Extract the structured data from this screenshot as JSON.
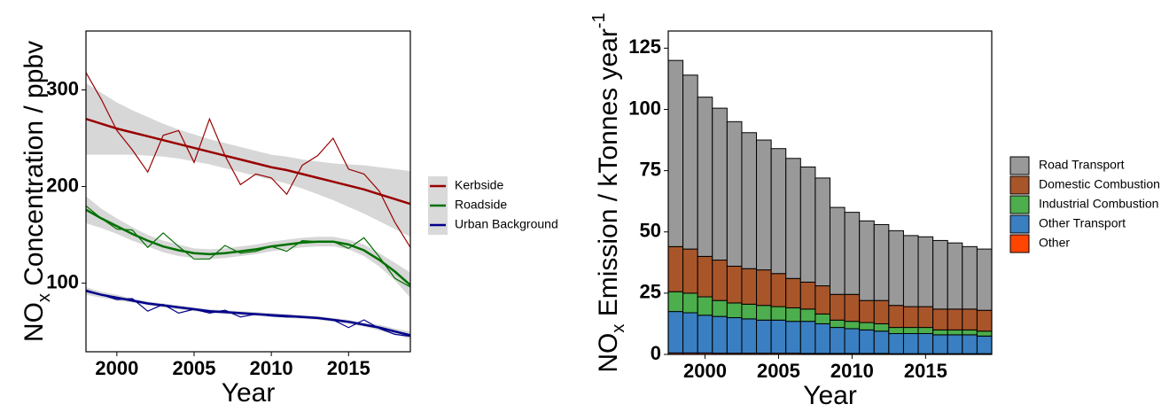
{
  "chart_data": [
    {
      "type": "line",
      "xlabel": "Year",
      "ylabel": [
        "NO",
        "x",
        " Concentration / ppbv"
      ],
      "x": [
        1998,
        1999,
        2000,
        2001,
        2002,
        2003,
        2004,
        2005,
        2006,
        2007,
        2008,
        2009,
        2010,
        2011,
        2012,
        2013,
        2014,
        2015,
        2016,
        2017,
        2018,
        2019
      ],
      "xlim": [
        1998,
        2019
      ],
      "xticks": [
        2000,
        2005,
        2010,
        2015
      ],
      "ylim": [
        29,
        361
      ],
      "yticks": [
        100,
        200,
        300
      ],
      "legend": "right",
      "series": [
        {
          "name": "Kerbside",
          "color": "#990000",
          "values": [
            318,
            290,
            258,
            238,
            215,
            253,
            258,
            225,
            270,
            232,
            202,
            213,
            209,
            192,
            222,
            232,
            250,
            218,
            213,
            195,
            163,
            137
          ],
          "smooth": [
            270,
            265,
            260,
            256,
            252,
            248,
            244,
            240,
            236,
            232,
            228,
            224,
            220,
            217,
            213,
            209,
            205,
            201,
            197,
            192,
            187,
            182
          ],
          "lower": [
            233,
            233,
            233,
            233,
            232,
            231,
            229,
            226,
            223,
            219,
            215,
            211,
            207,
            203,
            198,
            192,
            186,
            179,
            172,
            164,
            156,
            148
          ],
          "upper": [
            307,
            297,
            287,
            279,
            272,
            265,
            259,
            254,
            249,
            245,
            241,
            237,
            233,
            231,
            228,
            226,
            224,
            223,
            222,
            220,
            218,
            216
          ]
        },
        {
          "name": "Roadside",
          "color": "#007000",
          "values": [
            180,
            167,
            156,
            155,
            137,
            152,
            138,
            125,
            125,
            139,
            131,
            133,
            138,
            133,
            144,
            143,
            143,
            136,
            147,
            127,
            105,
            96
          ],
          "smooth": [
            176,
            167,
            159,
            151,
            144,
            138,
            134,
            131,
            130,
            131,
            133,
            135,
            138,
            140,
            142,
            143,
            143,
            140,
            134,
            124,
            112,
            98
          ],
          "lower": [
            162,
            157,
            151,
            144,
            138,
            132,
            128,
            126,
            125,
            126,
            128,
            130,
            133,
            135,
            137,
            138,
            138,
            135,
            128,
            117,
            103,
            85
          ],
          "upper": [
            190,
            177,
            167,
            158,
            150,
            144,
            140,
            136,
            135,
            136,
            138,
            140,
            143,
            145,
            147,
            148,
            148,
            145,
            140,
            131,
            121,
            111
          ]
        },
        {
          "name": "Urban Background",
          "color": "#00008b",
          "values": [
            93,
            88,
            83,
            84,
            71,
            78,
            69,
            73,
            69,
            72,
            65,
            68,
            66,
            65,
            65,
            64,
            62,
            54,
            62,
            53,
            47,
            45
          ],
          "smooth": [
            92,
            88,
            85,
            82,
            79,
            77,
            75,
            73,
            71,
            70,
            69,
            68,
            67,
            66,
            65,
            64,
            62,
            60,
            57,
            54,
            50,
            46
          ],
          "lower": [
            88,
            85,
            82,
            80,
            77,
            75,
            73,
            71,
            69,
            68,
            67,
            66,
            65,
            64,
            63,
            62,
            60,
            58,
            55,
            51,
            47,
            42
          ],
          "upper": [
            96,
            91,
            88,
            84,
            81,
            79,
            77,
            75,
            73,
            72,
            71,
            70,
            69,
            68,
            67,
            66,
            64,
            62,
            59,
            57,
            53,
            50
          ]
        }
      ]
    },
    {
      "type": "bar",
      "stacked": true,
      "xlabel": "Year",
      "ylabel": [
        "NO",
        "x",
        " Emission / kTonnes year",
        "-1"
      ],
      "x": [
        1998,
        1999,
        2000,
        2001,
        2002,
        2003,
        2004,
        2005,
        2006,
        2007,
        2008,
        2009,
        2010,
        2011,
        2012,
        2013,
        2014,
        2015,
        2016,
        2017,
        2018,
        2019
      ],
      "xlim": [
        1997.5,
        2019.5
      ],
      "xticks": [
        2000,
        2005,
        2010,
        2015
      ],
      "ylim": [
        0,
        132
      ],
      "yticks": [
        0,
        25,
        50,
        75,
        100,
        125
      ],
      "legend": "right",
      "series": [
        {
          "name": "Other",
          "color": "#ff4500",
          "values": [
            0.6,
            0.6,
            0.6,
            0.5,
            0.5,
            0.5,
            0.5,
            0.5,
            0.5,
            0.4,
            0.4,
            0.4,
            0.4,
            0.4,
            0.4,
            0.3,
            0.3,
            0.3,
            0.3,
            0.3,
            0.3,
            0.3
          ]
        },
        {
          "name": "Other Transport",
          "color": "#3a7fc1",
          "values": [
            16.9,
            16.4,
            15.4,
            15,
            14.5,
            14,
            13.5,
            13.5,
            13,
            13.1,
            12.1,
            10.6,
            10.1,
            9.6,
            9.1,
            8.2,
            8.2,
            8.2,
            7.7,
            7.7,
            7.7,
            7.2
          ]
        },
        {
          "name": "Industrial Combustion",
          "color": "#4cae4c",
          "values": [
            8.1,
            8,
            7.5,
            6.5,
            6,
            6,
            6,
            5.5,
            5.5,
            5,
            4,
            3,
            3,
            3,
            3,
            2.5,
            2.5,
            2.5,
            2,
            2,
            2,
            2
          ]
        },
        {
          "name": "Domestic Combustion",
          "color": "#a9552a",
          "values": [
            18.4,
            18,
            16.5,
            16.5,
            15,
            14.5,
            14.5,
            13.5,
            12,
            11,
            11.5,
            10.5,
            11,
            9,
            9.5,
            9,
            8.5,
            8.5,
            8.5,
            8.5,
            8.5,
            8.5
          ]
        },
        {
          "name": "Road Transport",
          "color": "#999999",
          "values": [
            76,
            71,
            65,
            62,
            59,
            55.5,
            53,
            51,
            49,
            47,
            44,
            35.5,
            33.5,
            32.5,
            31,
            30.5,
            29,
            28.5,
            28,
            27,
            25.5,
            25
          ]
        }
      ]
    }
  ]
}
